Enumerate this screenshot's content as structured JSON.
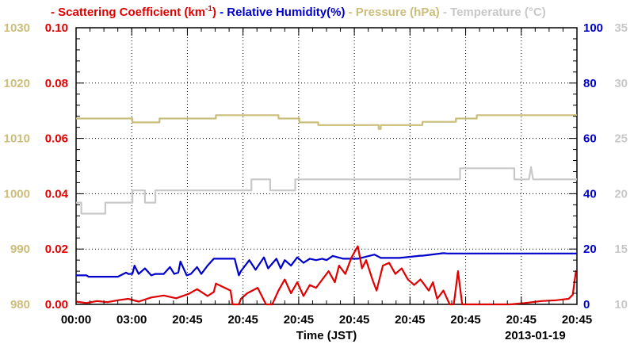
{
  "chart_data": {
    "type": "line",
    "legend": [
      {
        "name": "Scattering Coefficient (km",
        "sup": "-1",
        "suffix": ")",
        "color": "#e00000"
      },
      {
        "name": "Relative Humidity(%)",
        "color": "#0000cc"
      },
      {
        "name": "Pressure (hPa)",
        "color": "#cbbd7a"
      },
      {
        "name": "Temperature (°C)",
        "color": "#c8c8c8"
      }
    ],
    "legend_dash": "-",
    "xlabel": "Time (JST)",
    "x_date_label": "2013-01-19",
    "x_tick_labels": [
      "00:00",
      "03:00",
      "20:45",
      "20:45",
      "20:45",
      "20:45",
      "20:45",
      "20:45",
      "20:45",
      "20:45"
    ],
    "axes": {
      "scattering": {
        "ticks": [
          "0.00",
          "0.02",
          "0.04",
          "0.06",
          "0.08",
          "0.10"
        ],
        "ylim": [
          0,
          0.1
        ],
        "color": "#e00000"
      },
      "pressure": {
        "ticks": [
          "980",
          "990",
          "1000",
          "1010",
          "1020",
          "1030"
        ],
        "ylim": [
          980,
          1030
        ],
        "color": "#cbbd7a"
      },
      "humidity": {
        "ticks": [
          "0",
          "20",
          "40",
          "60",
          "80",
          "100"
        ],
        "ylim": [
          0,
          100
        ],
        "color": "#0000cc"
      },
      "temperature": {
        "ticks": [
          "10",
          "15",
          "20",
          "25",
          "30",
          "35"
        ],
        "ylim": [
          10,
          35
        ],
        "color": "#c8c8c8"
      }
    },
    "grid": true,
    "xlim": [
      0,
      24
    ],
    "series": [
      {
        "name": "Pressure (hPa)",
        "axis": "pressure",
        "color": "#cbbd7a",
        "x": [
          0,
          2.7,
          2.7,
          4.0,
          4.0,
          6.7,
          6.7,
          9.7,
          9.7,
          10.7,
          10.7,
          11.6,
          11.6,
          14.5,
          14.5,
          14.6,
          14.6,
          16.6,
          16.6,
          18.2,
          18.2,
          19.2,
          19.2,
          21.5,
          21.5,
          24
        ],
        "values": [
          1013.6,
          1013.6,
          1012.9,
          1012.9,
          1013.6,
          1013.6,
          1014.2,
          1014.2,
          1013.6,
          1013.6,
          1012.9,
          1012.9,
          1012.4,
          1012.4,
          1011.7,
          1011.7,
          1012.4,
          1012.4,
          1013.0,
          1013.0,
          1013.6,
          1013.6,
          1014.2,
          1014.2,
          1014.2,
          1014.2
        ]
      },
      {
        "name": "Temperature (°C)",
        "axis": "temperature",
        "color": "#c8c8c8",
        "x": [
          0,
          0.25,
          0.25,
          1.4,
          1.4,
          2.7,
          2.7,
          3.3,
          3.3,
          3.8,
          3.8,
          7.7,
          7.7,
          8.4,
          8.4,
          9.3,
          9.3,
          10.5,
          10.5,
          18.4,
          18.4,
          19.2,
          19.2,
          21.0,
          21.0,
          21.7,
          21.8,
          21.9,
          24
        ],
        "values": [
          19.2,
          19.2,
          18.2,
          18.2,
          19.2,
          19.2,
          20.3,
          20.3,
          19.2,
          19.2,
          20.3,
          20.3,
          20.3,
          20.3,
          21.3,
          21.3,
          20.3,
          20.3,
          21.3,
          21.3,
          22.3,
          22.3,
          22.3,
          22.3,
          21.3,
          21.3,
          22.4,
          21.3,
          21.3
        ]
      },
      {
        "name": "Relative Humidity(%)",
        "axis": "humidity",
        "color": "#0000cc",
        "x": [
          0,
          0.5,
          0.6,
          2.0,
          2.4,
          2.5,
          2.7,
          2.8,
          3.0,
          3.3,
          3.6,
          3.8,
          4.2,
          4.5,
          4.7,
          4.9,
          5.0,
          5.3,
          5.5,
          5.8,
          6.0,
          6.3,
          6.6,
          7.6,
          7.8,
          7.9,
          8.3,
          8.6,
          9.0,
          9.2,
          9.6,
          9.8,
          10.0,
          10.3,
          10.6,
          10.9,
          11.2,
          11.5,
          11.8,
          12.0,
          12.3,
          12.8,
          13.5,
          14.3,
          14.6,
          15.0,
          15.5,
          16.5,
          16.6,
          17.6,
          17.8,
          18.5,
          24
        ],
        "values": [
          10.5,
          10.5,
          10.0,
          10.0,
          11.5,
          11.0,
          11.0,
          14.0,
          11.0,
          13.0,
          10.5,
          11.0,
          11.0,
          13.5,
          11.0,
          11.5,
          15.5,
          10.5,
          11.0,
          13.5,
          11.0,
          14.0,
          16.5,
          16.5,
          10.5,
          12.0,
          16.0,
          12.5,
          17.0,
          13.0,
          16.5,
          13.0,
          16.0,
          14.0,
          17.0,
          15.0,
          16.5,
          16.0,
          16.5,
          16.0,
          17.5,
          16.5,
          16.5,
          18.0,
          16.8,
          16.8,
          16.8,
          17.6,
          17.6,
          18.5,
          18.4,
          18.4,
          18.4
        ]
      },
      {
        "name": "Scattering Coefficient",
        "axis": "scattering",
        "color": "#e00000",
        "x": [
          0,
          0.5,
          1.0,
          1.5,
          2.0,
          2.5,
          3.0,
          3.6,
          4.2,
          4.8,
          5.4,
          5.8,
          6.3,
          6.6,
          6.7,
          7.4,
          7.5,
          7.8,
          7.9,
          8.2,
          8.7,
          8.9,
          9.1,
          9.4,
          9.7,
          10.0,
          10.3,
          10.6,
          10.9,
          11.2,
          11.5,
          11.8,
          12.1,
          12.4,
          12.6,
          12.9,
          13.2,
          13.5,
          13.7,
          13.9,
          14.2,
          14.4,
          14.7,
          15.0,
          15.3,
          15.6,
          15.9,
          16.2,
          16.5,
          16.7,
          16.9,
          17.1,
          17.3,
          17.6,
          17.9,
          18.1,
          18.3,
          18.5,
          20.8,
          21.5,
          22.3,
          23.0,
          23.6,
          23.8,
          23.95,
          24
        ],
        "values": [
          0.001,
          0.0005,
          0.0012,
          0.0008,
          0.0015,
          0.002,
          0.001,
          0.0025,
          0.0032,
          0.0022,
          0.0038,
          0.0055,
          0.003,
          0.0045,
          0.0075,
          0.005,
          0.0,
          0.0,
          0.002,
          0.004,
          0.006,
          0.003,
          0.0,
          0.0,
          0.005,
          0.009,
          0.004,
          0.008,
          0.003,
          0.007,
          0.006,
          0.009,
          0.012,
          0.008,
          0.014,
          0.011,
          0.017,
          0.021,
          0.013,
          0.016,
          0.009,
          0.005,
          0.014,
          0.015,
          0.011,
          0.013,
          0.009,
          0.007,
          0.009,
          0.007,
          0.005,
          0.008,
          0.002,
          0.005,
          0.0,
          0.0,
          0.012,
          0.0,
          0.0,
          0.0005,
          0.0012,
          0.0015,
          0.002,
          0.0035,
          0.012,
          0.012
        ]
      }
    ]
  }
}
